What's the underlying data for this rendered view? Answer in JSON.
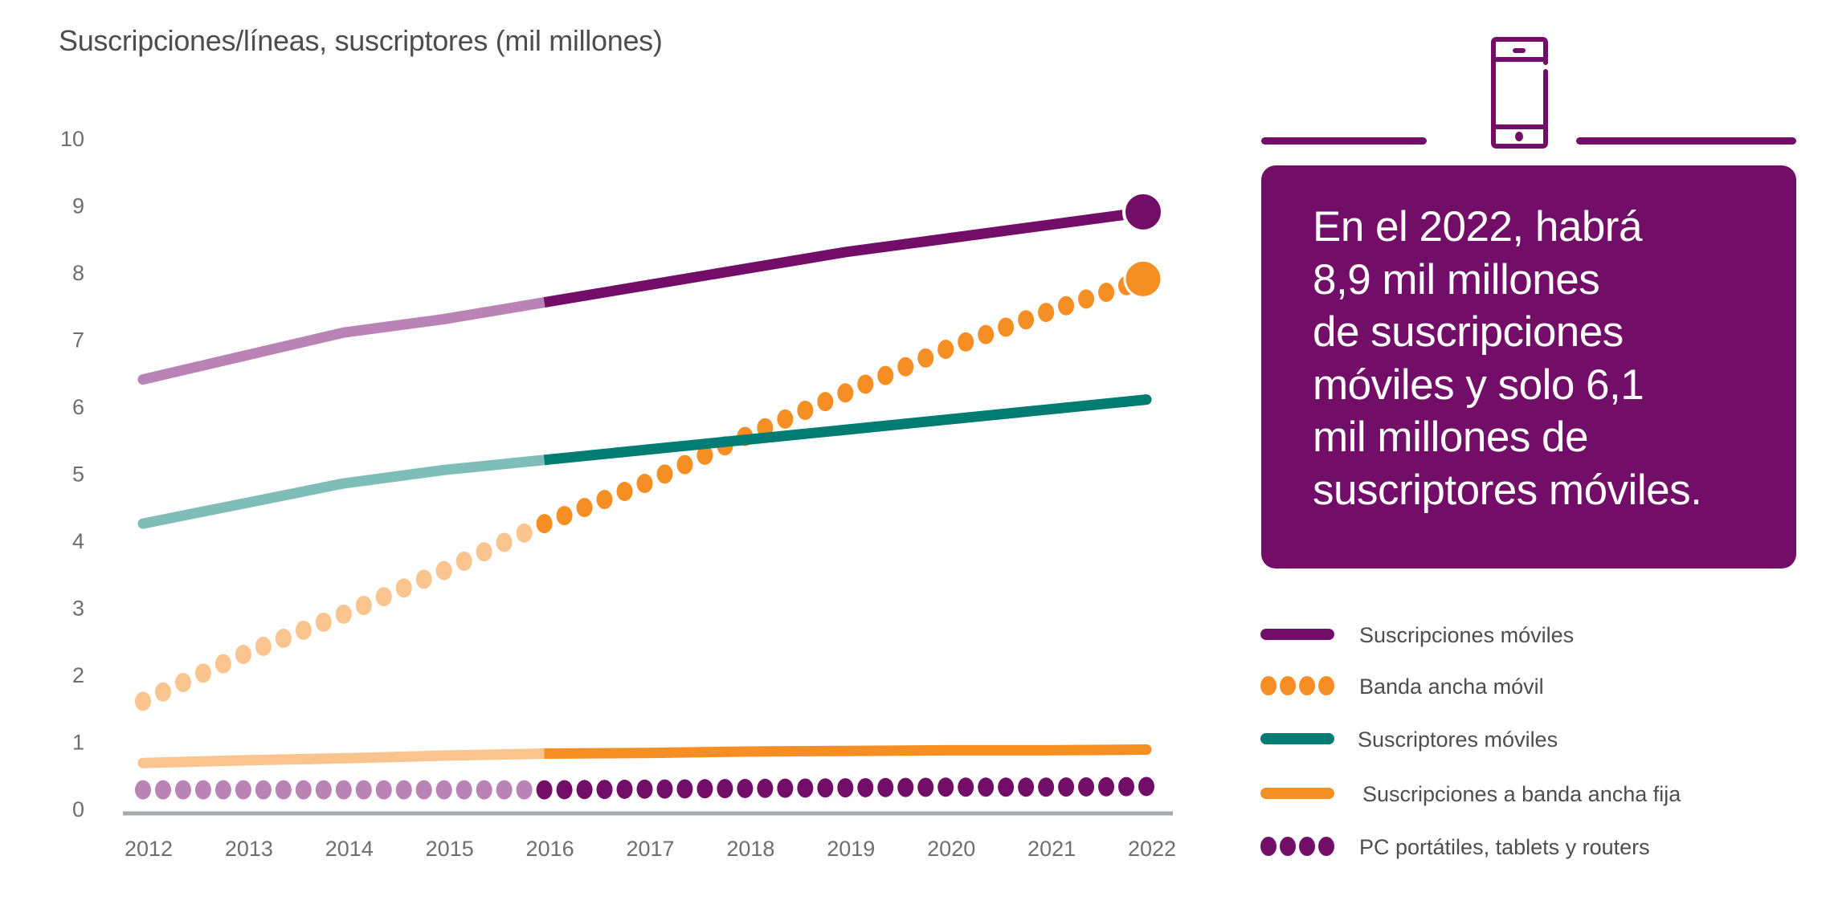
{
  "colors": {
    "purple": "#720e68",
    "purple_light": "#b984b5",
    "orange": "#f58e23",
    "orange_light": "#f9c48e",
    "teal": "#007c73",
    "teal_light": "#7fbdb8",
    "axis": "#a7a9ac",
    "text": "#4d4d4f"
  },
  "callout": {
    "lines": [
      "En el 2022, habrá",
      "8,9 mil millones",
      "de suscripciones",
      "móviles y solo 6,1",
      "mil millones de",
      "suscriptores móviles."
    ]
  },
  "icons": {
    "header": "mobile-phone-icon"
  },
  "chart_data": {
    "type": "line",
    "title": "Suscripciones/líneas, suscriptores (mil millones)",
    "xlabel": "",
    "ylabel": "Suscripciones/líneas, suscriptores (mil millones)",
    "x": [
      "2012",
      "2013",
      "2014",
      "2015",
      "2016",
      "2017",
      "2018",
      "2019",
      "2020",
      "2021",
      "2022"
    ],
    "yticks": [
      "0",
      "1",
      "2",
      "3",
      "4",
      "5",
      "6",
      "7",
      "8",
      "9",
      "10"
    ],
    "ylim": [
      0,
      10
    ],
    "grid": false,
    "forecast_from": "2016",
    "legend_position": "right",
    "series": [
      {
        "name": "Suscripciones móviles",
        "style": "line",
        "color": "#720e68",
        "color_historic": "#b984b5",
        "end_marker": true,
        "values": [
          6.4,
          6.75,
          7.1,
          7.3,
          7.55,
          7.8,
          8.05,
          8.3,
          8.5,
          8.7,
          8.9
        ]
      },
      {
        "name": "Banda ancha móvil",
        "style": "dots",
        "color": "#f58e23",
        "color_historic": "#f9c48e",
        "end_marker": true,
        "values": [
          1.6,
          2.3,
          2.9,
          3.55,
          4.25,
          4.85,
          5.55,
          6.2,
          6.85,
          7.4,
          7.9
        ]
      },
      {
        "name": "Suscriptores móviles",
        "style": "line",
        "color": "#007c73",
        "color_historic": "#7fbdb8",
        "end_marker": false,
        "values": [
          4.25,
          4.55,
          4.85,
          5.05,
          5.2,
          5.35,
          5.5,
          5.65,
          5.8,
          5.95,
          6.1
        ]
      },
      {
        "name": "Suscripciones a banda ancha fija",
        "style": "line",
        "color": "#f58e23",
        "color_historic": "#f9c48e",
        "end_marker": false,
        "values": [
          0.68,
          0.72,
          0.75,
          0.79,
          0.82,
          0.83,
          0.85,
          0.86,
          0.87,
          0.87,
          0.88
        ]
      },
      {
        "name": "PC portátiles, tablets y routers",
        "style": "dots",
        "color": "#720e68",
        "color_historic": "#b984b5",
        "end_marker": false,
        "values": [
          0.28,
          0.28,
          0.28,
          0.28,
          0.28,
          0.29,
          0.3,
          0.31,
          0.32,
          0.32,
          0.33
        ]
      }
    ]
  }
}
